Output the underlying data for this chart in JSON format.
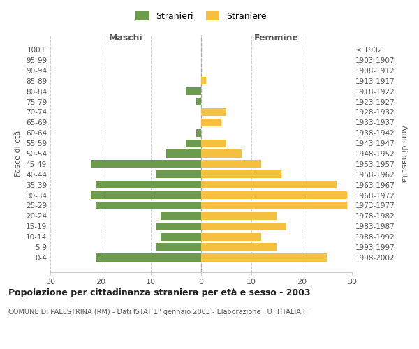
{
  "age_groups": [
    "100+",
    "95-99",
    "90-94",
    "85-89",
    "80-84",
    "75-79",
    "70-74",
    "65-69",
    "60-64",
    "55-59",
    "50-54",
    "45-49",
    "40-44",
    "35-39",
    "30-34",
    "25-29",
    "20-24",
    "15-19",
    "10-14",
    "5-9",
    "0-4"
  ],
  "birth_years": [
    "≤ 1902",
    "1903-1907",
    "1908-1912",
    "1913-1917",
    "1918-1922",
    "1923-1927",
    "1928-1932",
    "1933-1937",
    "1938-1942",
    "1943-1947",
    "1948-1952",
    "1953-1957",
    "1958-1962",
    "1963-1967",
    "1968-1972",
    "1973-1977",
    "1978-1982",
    "1983-1987",
    "1988-1992",
    "1993-1997",
    "1998-2002"
  ],
  "males": [
    0,
    0,
    0,
    0,
    3,
    1,
    0,
    0,
    1,
    3,
    7,
    22,
    9,
    21,
    22,
    21,
    8,
    9,
    8,
    9,
    21
  ],
  "females": [
    0,
    0,
    0,
    1,
    0,
    0,
    5,
    4,
    0,
    5,
    8,
    12,
    16,
    27,
    29,
    29,
    15,
    17,
    12,
    15,
    25
  ],
  "male_color": "#6d9b4e",
  "female_color": "#f5c040",
  "title": "Popolazione per cittadinanza straniera per età e sesso - 2003",
  "subtitle": "COMUNE DI PALESTRINA (RM) - Dati ISTAT 1° gennaio 2003 - Elaborazione TUTTITALIA.IT",
  "xlabel_left": "Maschi",
  "xlabel_right": "Femmine",
  "ylabel_left": "Fasce di età",
  "ylabel_right": "Anni di nascita",
  "legend_stranieri": "Stranieri",
  "legend_straniere": "Straniere",
  "xlim": 30,
  "background_color": "#ffffff",
  "grid_color": "#cccccc"
}
